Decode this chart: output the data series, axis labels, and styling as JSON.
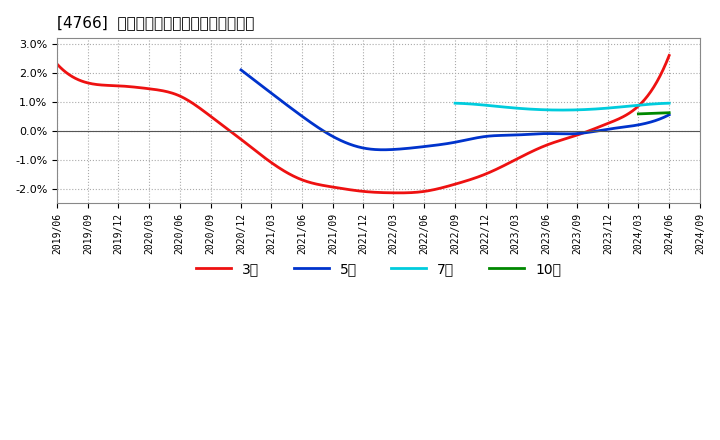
{
  "title": "[4766]  経常利益マージンの平均値の推移",
  "ylim": [
    -2.5,
    3.2
  ],
  "yticks": [
    -2.0,
    -1.0,
    0.0,
    1.0,
    2.0,
    3.0
  ],
  "ytick_labels": [
    "-2.0%",
    "-1.0%",
    "0.0%",
    "1.0%",
    "2.0%",
    "3.0%"
  ],
  "background_color": "#ffffff",
  "plot_bg_color": "#ffffff",
  "grid_color": "#aaaaaa",
  "series": {
    "3year": {
      "color": "#ee1111",
      "label": "3年",
      "points": [
        [
          "2019/06",
          2.3
        ],
        [
          "2019/09",
          1.65
        ],
        [
          "2019/12",
          1.55
        ],
        [
          "2020/03",
          1.45
        ],
        [
          "2020/06",
          1.2
        ],
        [
          "2020/09",
          0.5
        ],
        [
          "2020/12",
          -0.3
        ],
        [
          "2021/03",
          -1.1
        ],
        [
          "2021/06",
          -1.7
        ],
        [
          "2021/09",
          -1.95
        ],
        [
          "2021/12",
          -2.1
        ],
        [
          "2022/03",
          -2.15
        ],
        [
          "2022/06",
          -2.1
        ],
        [
          "2022/09",
          -1.85
        ],
        [
          "2022/12",
          -1.5
        ],
        [
          "2023/03",
          -1.0
        ],
        [
          "2023/06",
          -0.5
        ],
        [
          "2023/09",
          -0.15
        ],
        [
          "2023/12",
          0.25
        ],
        [
          "2024/03",
          0.85
        ],
        [
          "2024/06",
          2.6
        ]
      ]
    },
    "5year": {
      "color": "#0033cc",
      "label": "5年",
      "points": [
        [
          "2020/12",
          2.1
        ],
        [
          "2021/03",
          1.3
        ],
        [
          "2021/06",
          0.5
        ],
        [
          "2021/09",
          -0.2
        ],
        [
          "2021/12",
          -0.6
        ],
        [
          "2022/03",
          -0.65
        ],
        [
          "2022/06",
          -0.55
        ],
        [
          "2022/09",
          -0.4
        ],
        [
          "2022/12",
          -0.2
        ],
        [
          "2023/03",
          -0.15
        ],
        [
          "2023/06",
          -0.1
        ],
        [
          "2023/09",
          -0.1
        ],
        [
          "2023/12",
          0.05
        ],
        [
          "2024/03",
          0.2
        ],
        [
          "2024/06",
          0.55
        ]
      ]
    },
    "7year": {
      "color": "#00ccdd",
      "label": "7年",
      "points": [
        [
          "2022/09",
          0.95
        ],
        [
          "2022/12",
          0.88
        ],
        [
          "2023/03",
          0.78
        ],
        [
          "2023/06",
          0.72
        ],
        [
          "2023/09",
          0.72
        ],
        [
          "2023/12",
          0.78
        ],
        [
          "2024/03",
          0.88
        ],
        [
          "2024/06",
          0.95
        ]
      ]
    },
    "10year": {
      "color": "#008800",
      "label": "10年",
      "points": [
        [
          "2024/03",
          0.58
        ],
        [
          "2024/06",
          0.62
        ]
      ]
    }
  },
  "x_tick_labels": [
    "2019/06",
    "2019/09",
    "2019/12",
    "2020/03",
    "2020/06",
    "2020/09",
    "2020/12",
    "2021/03",
    "2021/06",
    "2021/09",
    "2021/12",
    "2022/03",
    "2022/06",
    "2022/09",
    "2022/12",
    "2023/03",
    "2023/06",
    "2023/09",
    "2023/12",
    "2024/03",
    "2024/06",
    "2024/09"
  ],
  "legend_entries": [
    "3年",
    "5年",
    "7年",
    "10年"
  ],
  "legend_colors": [
    "#ee1111",
    "#0033cc",
    "#00ccdd",
    "#008800"
  ],
  "font_name": "IPAexGothic"
}
